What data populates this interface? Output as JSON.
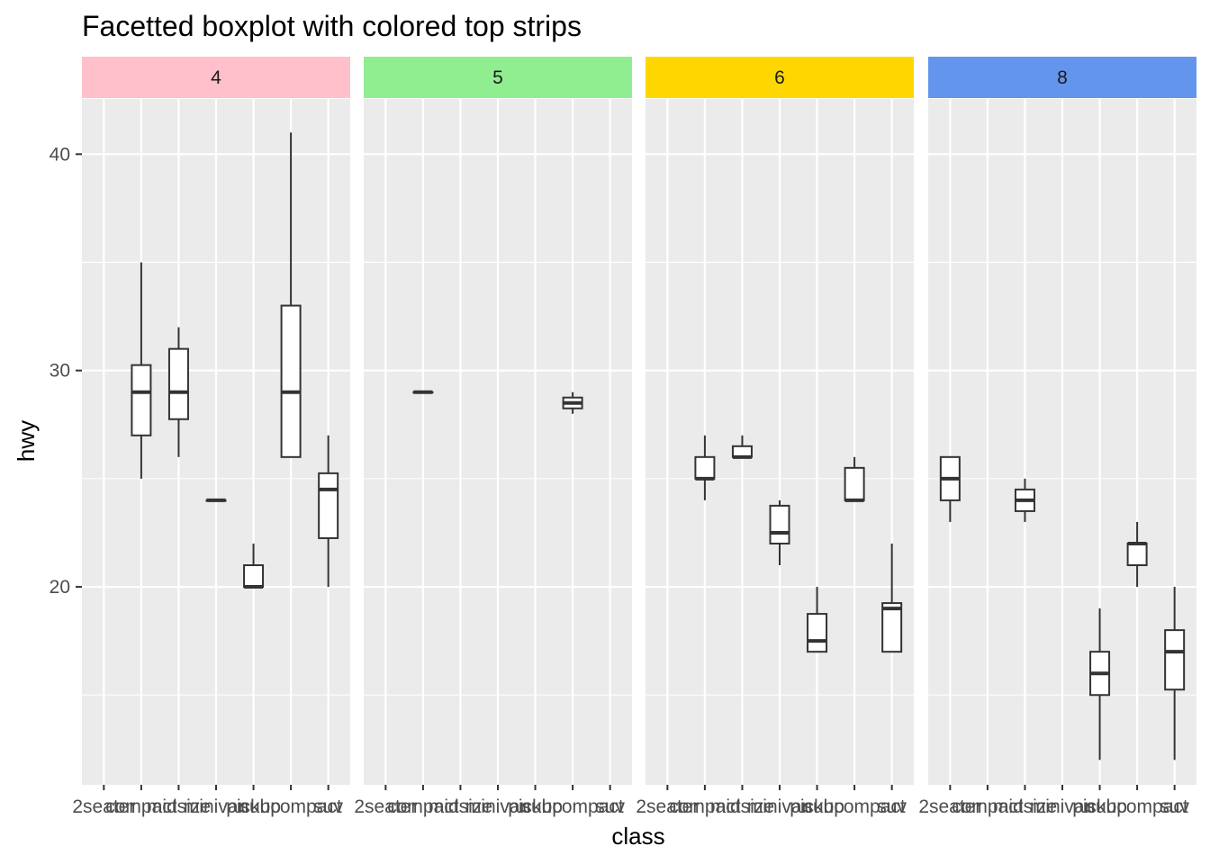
{
  "chart_data": {
    "type": "boxplot",
    "title": "Facetted boxplot with colored top strips",
    "xlabel": "class",
    "ylabel": "hwy",
    "categories": [
      "2seater",
      "compact",
      "midsize",
      "minivan",
      "pickup",
      "subcompact",
      "suv"
    ],
    "ylim": [
      10.85,
      42.55
    ],
    "yticks": [
      20,
      30,
      40
    ],
    "grid": true,
    "panels": [
      {
        "label": "4",
        "strip_color": "#FFC0CB",
        "boxes": [
          {
            "category": "compact",
            "min": 25,
            "q1": 27,
            "median": 29,
            "q3": 30.25,
            "max": 35
          },
          {
            "category": "midsize",
            "min": 26,
            "q1": 27.75,
            "median": 29,
            "q3": 31,
            "max": 32
          },
          {
            "category": "minivan",
            "min": 24,
            "q1": 24,
            "median": 24,
            "q3": 24,
            "max": 24
          },
          {
            "category": "pickup",
            "min": 20,
            "q1": 20,
            "median": 20,
            "q3": 21,
            "max": 22
          },
          {
            "category": "subcompact",
            "min": 26,
            "q1": 26,
            "median": 29,
            "q3": 33,
            "max": 41
          },
          {
            "category": "suv",
            "min": 20,
            "q1": 22.25,
            "median": 24.5,
            "q3": 25.25,
            "max": 27
          }
        ]
      },
      {
        "label": "5",
        "strip_color": "#90EE90",
        "boxes": [
          {
            "category": "compact",
            "min": 29,
            "q1": 29,
            "median": 29,
            "q3": 29,
            "max": 29
          },
          {
            "category": "subcompact",
            "min": 28,
            "q1": 28.25,
            "median": 28.5,
            "q3": 28.75,
            "max": 29
          }
        ]
      },
      {
        "label": "6",
        "strip_color": "#FFD700",
        "boxes": [
          {
            "category": "compact",
            "min": 24,
            "q1": 25,
            "median": 25,
            "q3": 26,
            "max": 27
          },
          {
            "category": "midsize",
            "min": 26,
            "q1": 26,
            "median": 26,
            "q3": 26.5,
            "max": 27
          },
          {
            "category": "minivan",
            "min": 21,
            "q1": 22,
            "median": 22.5,
            "q3": 23.75,
            "max": 24
          },
          {
            "category": "pickup",
            "min": 17,
            "q1": 17,
            "median": 17.5,
            "q3": 18.75,
            "max": 20
          },
          {
            "category": "subcompact",
            "min": 24,
            "q1": 24,
            "median": 24,
            "q3": 25.5,
            "max": 26
          },
          {
            "category": "suv",
            "min": 17,
            "q1": 17,
            "median": 19,
            "q3": 19.25,
            "max": 22
          }
        ]
      },
      {
        "label": "8",
        "strip_color": "#6495ED",
        "boxes": [
          {
            "category": "2seater",
            "min": 23,
            "q1": 24,
            "median": 25,
            "q3": 26,
            "max": 26
          },
          {
            "category": "midsize",
            "min": 23,
            "q1": 23.5,
            "median": 24,
            "q3": 24.5,
            "max": 25
          },
          {
            "category": "pickup",
            "min": 12,
            "q1": 15,
            "median": 16,
            "q3": 17,
            "max": 19
          },
          {
            "category": "subcompact",
            "min": 20,
            "q1": 21,
            "median": 22,
            "q3": 22,
            "max": 23
          },
          {
            "category": "suv",
            "min": 12,
            "q1": 15.25,
            "median": 17,
            "q3": 18,
            "max": 20
          }
        ]
      }
    ]
  }
}
